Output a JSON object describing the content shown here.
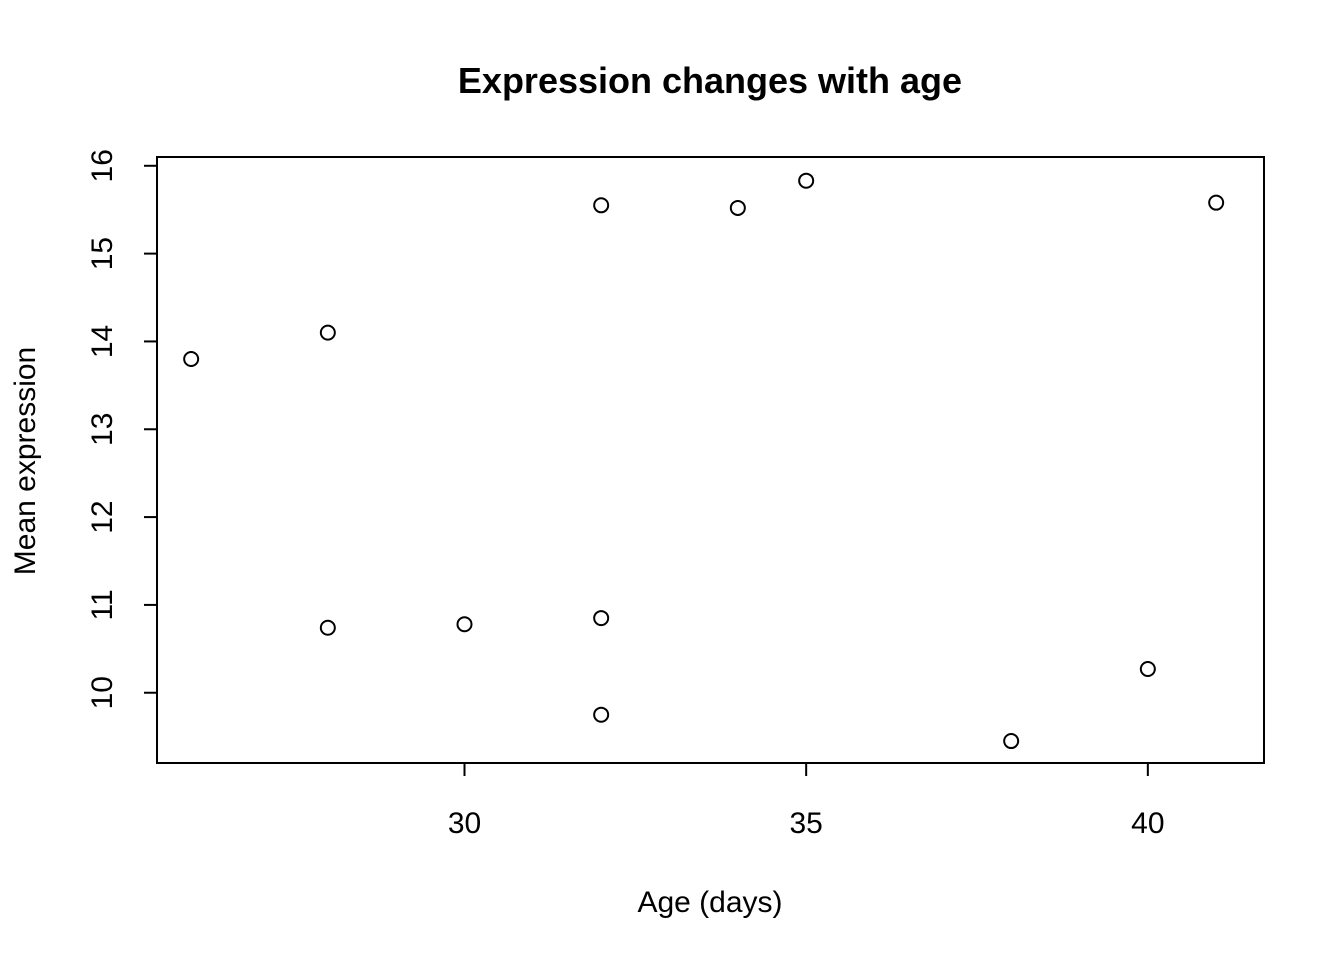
{
  "chart_data": {
    "type": "scatter",
    "title": "Expression changes with age",
    "xlabel": "Age (days)",
    "ylabel": "Mean expression",
    "xlim": [
      25.5,
      41.7
    ],
    "ylim": [
      9.2,
      16.1
    ],
    "x_ticks": [
      30,
      35,
      40
    ],
    "y_ticks": [
      10,
      11,
      12,
      13,
      14,
      15,
      16
    ],
    "grid": false,
    "marker": "open-circle",
    "series": [
      {
        "points": [
          {
            "x": 26,
            "y": 13.8
          },
          {
            "x": 28,
            "y": 14.1
          },
          {
            "x": 28,
            "y": 10.74
          },
          {
            "x": 30,
            "y": 10.78
          },
          {
            "x": 32,
            "y": 15.55
          },
          {
            "x": 32,
            "y": 10.85
          },
          {
            "x": 32,
            "y": 9.75
          },
          {
            "x": 34,
            "y": 15.52
          },
          {
            "x": 35,
            "y": 15.83
          },
          {
            "x": 38,
            "y": 9.45
          },
          {
            "x": 40,
            "y": 10.27
          },
          {
            "x": 41,
            "y": 15.58
          }
        ]
      }
    ]
  }
}
